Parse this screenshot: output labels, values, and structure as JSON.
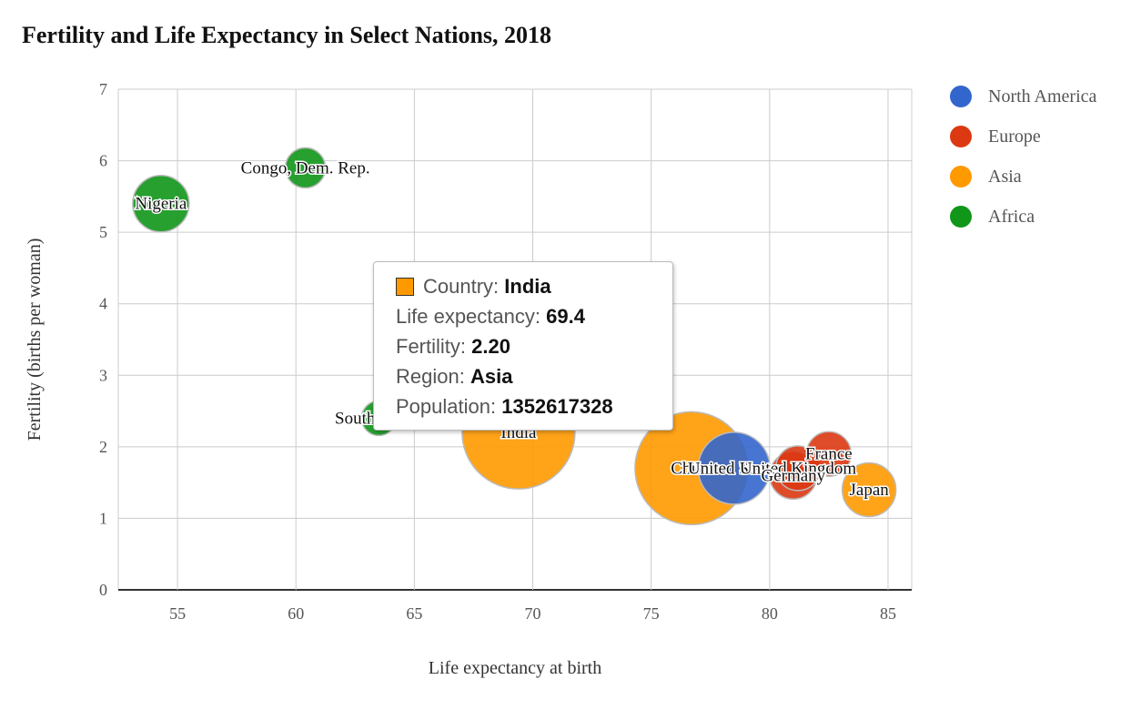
{
  "chart_data": {
    "type": "bubble",
    "title": "Fertility and Life Expectancy in Select Nations, 2018",
    "xlabel": "Life expectancy at birth",
    "ylabel": "Fertility (births per woman)",
    "xlim": [
      52.5,
      86
    ],
    "ylim": [
      0,
      7
    ],
    "xticks": [
      55,
      60,
      65,
      70,
      75,
      80,
      85
    ],
    "yticks": [
      0,
      1,
      2,
      3,
      4,
      5,
      6,
      7
    ],
    "grid": true,
    "legend_position": "right",
    "series": [
      {
        "name": "North America",
        "color": "#3366cc"
      },
      {
        "name": "Europe",
        "color": "#dc3912"
      },
      {
        "name": "Asia",
        "color": "#ff9900"
      },
      {
        "name": "Africa",
        "color": "#109618"
      }
    ],
    "points": [
      {
        "label": "Nigeria",
        "x": 54.3,
        "y": 5.4,
        "series": "Africa",
        "size": 0.38
      },
      {
        "label": "Congo, Dem. Rep.",
        "x": 60.4,
        "y": 5.9,
        "series": "Africa",
        "size": 0.2
      },
      {
        "label": "South Africa",
        "x": 63.5,
        "y": 2.4,
        "series": "Africa",
        "size": 0.14
      },
      {
        "label": "India",
        "x": 69.4,
        "y": 2.2,
        "series": "Asia",
        "size": 1.0
      },
      {
        "label": "China",
        "x": 76.7,
        "y": 1.7,
        "series": "Asia",
        "size": 1.0
      },
      {
        "label": "United States",
        "x": 78.5,
        "y": 1.7,
        "series": "North America",
        "size": 0.55
      },
      {
        "label": "United Kingdom",
        "x": 81.2,
        "y": 1.7,
        "series": "Europe",
        "size": 0.25
      },
      {
        "label": "Germany",
        "x": 81.0,
        "y": 1.6,
        "series": "Europe",
        "size": 0.28
      },
      {
        "label": "France",
        "x": 82.5,
        "y": 1.9,
        "series": "Europe",
        "size": 0.25
      },
      {
        "label": "Japan",
        "x": 84.2,
        "y": 1.4,
        "series": "Asia",
        "size": 0.35
      }
    ]
  },
  "tooltip": {
    "country_key": "Country",
    "country_value": "India",
    "life_key": "Life expectancy",
    "life_value": "69.4",
    "fertility_key": "Fertility",
    "fertility_value": "2.20",
    "region_key": "Region",
    "region_value": "Asia",
    "population_key": "Population",
    "population_value": "1352617328",
    "swatch_color": "#ff9900"
  }
}
